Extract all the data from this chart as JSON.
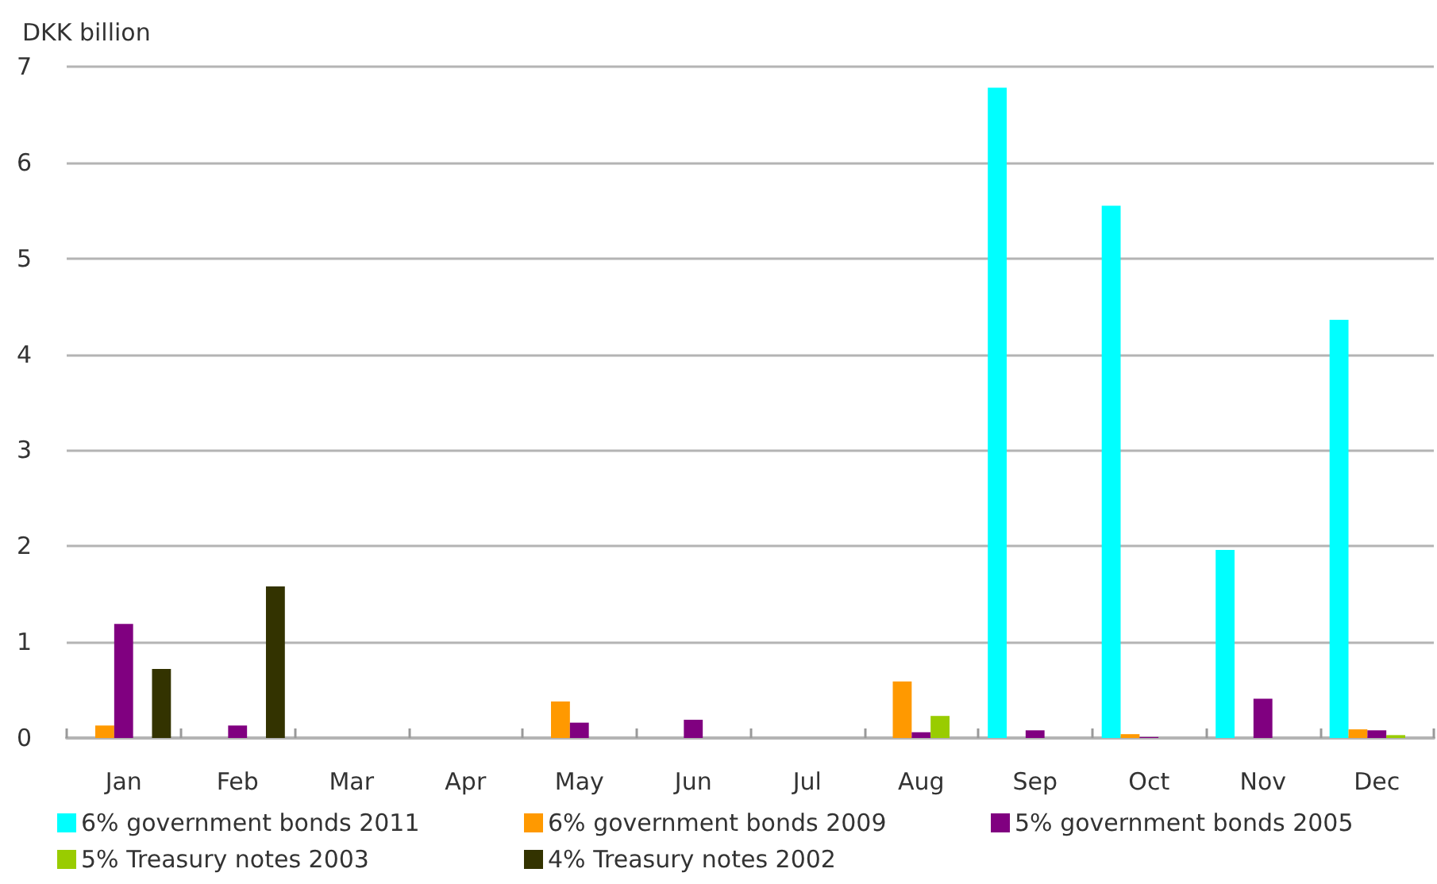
{
  "chart_data": {
    "type": "bar",
    "ylabel": "DKK billion",
    "categories": [
      "Jan",
      "Feb",
      "Mar",
      "Apr",
      "May",
      "Jun",
      "Jul",
      "Aug",
      "Sep",
      "Oct",
      "Nov",
      "Dec"
    ],
    "series": [
      {
        "name": "6% government bonds 2011",
        "color": "#00ffff",
        "values": [
          null,
          null,
          null,
          null,
          null,
          null,
          null,
          null,
          6.78,
          5.55,
          1.96,
          4.36
        ]
      },
      {
        "name": "6% government bonds 2009",
        "color": "#ff9900",
        "values": [
          0.13,
          null,
          null,
          null,
          0.38,
          null,
          null,
          0.59,
          null,
          0.04,
          null,
          0.09
        ]
      },
      {
        "name": "5% government bonds 2005",
        "color": "#800080",
        "values": [
          1.19,
          0.13,
          null,
          null,
          0.16,
          0.19,
          null,
          0.06,
          0.08,
          0.01,
          0.41,
          0.08
        ]
      },
      {
        "name": "5% Treasury notes 2003",
        "color": "#99cc00",
        "values": [
          null,
          null,
          null,
          null,
          null,
          null,
          null,
          0.23,
          null,
          null,
          null,
          0.03
        ]
      },
      {
        "name": "4% Treasury notes 2002",
        "color": "#333300",
        "values": [
          0.72,
          1.58,
          null,
          null,
          null,
          null,
          null,
          null,
          null,
          null,
          null,
          null
        ]
      }
    ],
    "ylim": [
      0,
      7
    ],
    "yticks": [
      0,
      1,
      2,
      3,
      4,
      5,
      6,
      7
    ],
    "grid": "y",
    "legend": "bottom"
  }
}
